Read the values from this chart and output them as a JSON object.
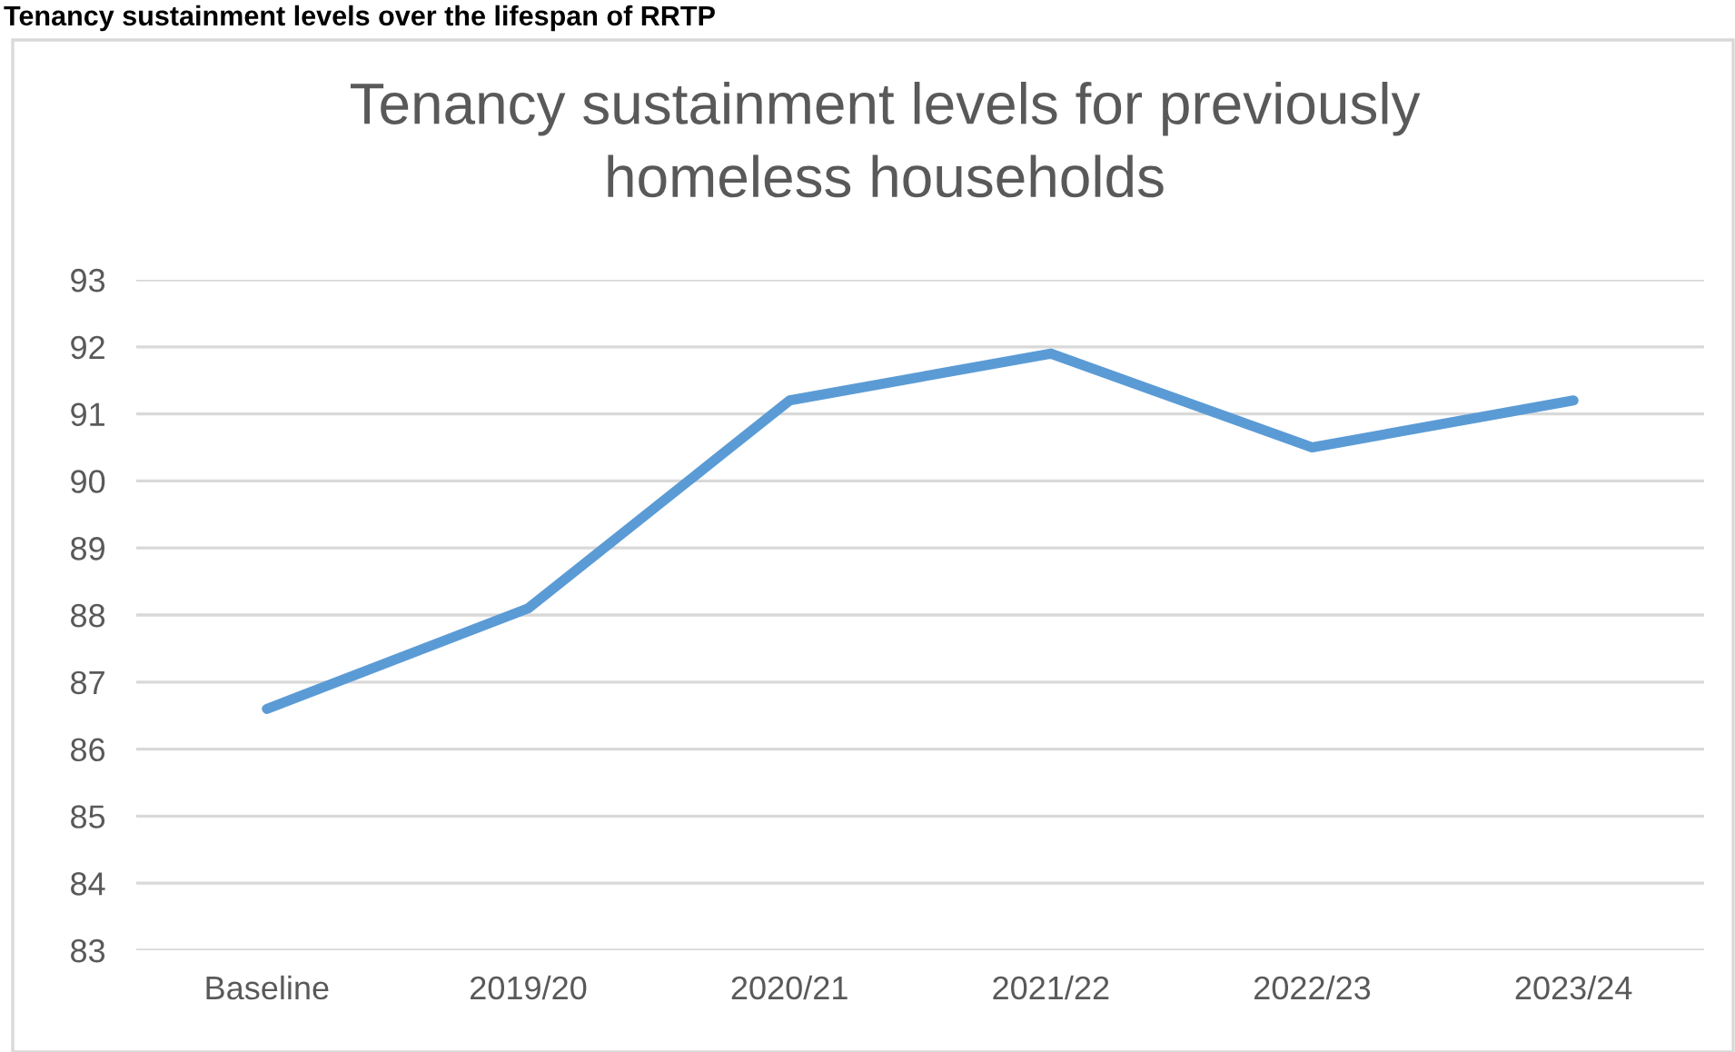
{
  "chart_data": {
    "type": "line",
    "title": "Tenancy sustainment levels for previously\nhomeless households",
    "annotations": [
      "Tenancy sustainment levels over the lifespan of RRTP"
    ],
    "categories": [
      "Baseline",
      "2019/20",
      "2020/21",
      "2021/22",
      "2022/23",
      "2023/24"
    ],
    "series": [
      {
        "color": "#5b9bd5",
        "values": [
          86.6,
          88.1,
          91.2,
          91.9,
          90.5,
          91.2
        ]
      }
    ],
    "ylim": [
      83,
      93
    ],
    "yticks": [
      83,
      84,
      85,
      86,
      87,
      88,
      89,
      90,
      91,
      92,
      93
    ],
    "grid": "y",
    "legend": false,
    "marker": "none",
    "line_style": "solid"
  }
}
